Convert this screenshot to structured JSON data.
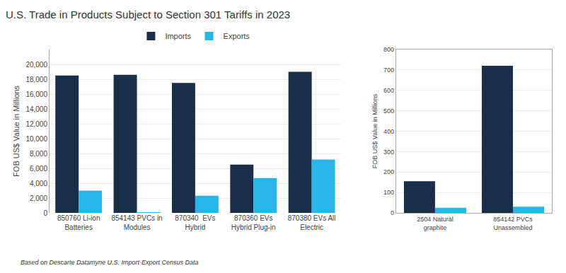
{
  "chart_data": [
    {
      "type": "bar",
      "title": "U.S. Trade in Products Subject to Section 301 Tariffs in 2023",
      "ylabel": "FOB US$ Value in Millions",
      "categories": [
        "850760 Li-ion\nBatteries",
        "854143 PVCs in\nModules",
        "870340  EVs\nHybrid",
        "870360 EVs\nHybrid Plug-in",
        "870380 EVs All\nElectric"
      ],
      "series": [
        {
          "name": "Imports",
          "color": "#1a2e4a",
          "values": [
            18500,
            18600,
            17500,
            6500,
            19000
          ]
        },
        {
          "name": "Exports",
          "color": "#29b5e8",
          "values": [
            3000,
            50,
            2300,
            4700,
            7200
          ]
        }
      ],
      "ylim": [
        0,
        22000
      ],
      "yticks": [
        0,
        {
          "value": 2000,
          "label": "2,000"
        },
        {
          "value": 4000,
          "label": "4,000"
        },
        {
          "value": 6000,
          "label": "6,000"
        },
        {
          "value": 8000,
          "label": "8,000"
        },
        {
          "value": 10000,
          "label": "10,000"
        },
        {
          "value": 12000,
          "label": "12,000"
        },
        {
          "value": 14000,
          "label": "14,000"
        },
        {
          "value": 16000,
          "label": "16,000"
        },
        {
          "value": 18000,
          "label": "18,000"
        },
        {
          "value": 20000,
          "label": "20,000"
        }
      ],
      "grid": true,
      "legend": "upper center",
      "annotations": [
        "Based on Descarte Datamyne U.S. Import-Export Census Data"
      ]
    },
    {
      "type": "bar",
      "ylabel": "FOB US$ Value in Millions",
      "categories": [
        "2504 Natural\ngraphite",
        "854142 PVCs\nUnassembled"
      ],
      "series": [
        {
          "name": "Imports",
          "color": "#1a2e4a",
          "values": [
            155,
            720
          ]
        },
        {
          "name": "Exports",
          "color": "#29b5e8",
          "values": [
            25,
            30
          ]
        }
      ],
      "ylim": [
        0,
        800
      ],
      "yticks": [
        0,
        100,
        200,
        300,
        400,
        500,
        600,
        700,
        800
      ],
      "grid": true
    }
  ]
}
